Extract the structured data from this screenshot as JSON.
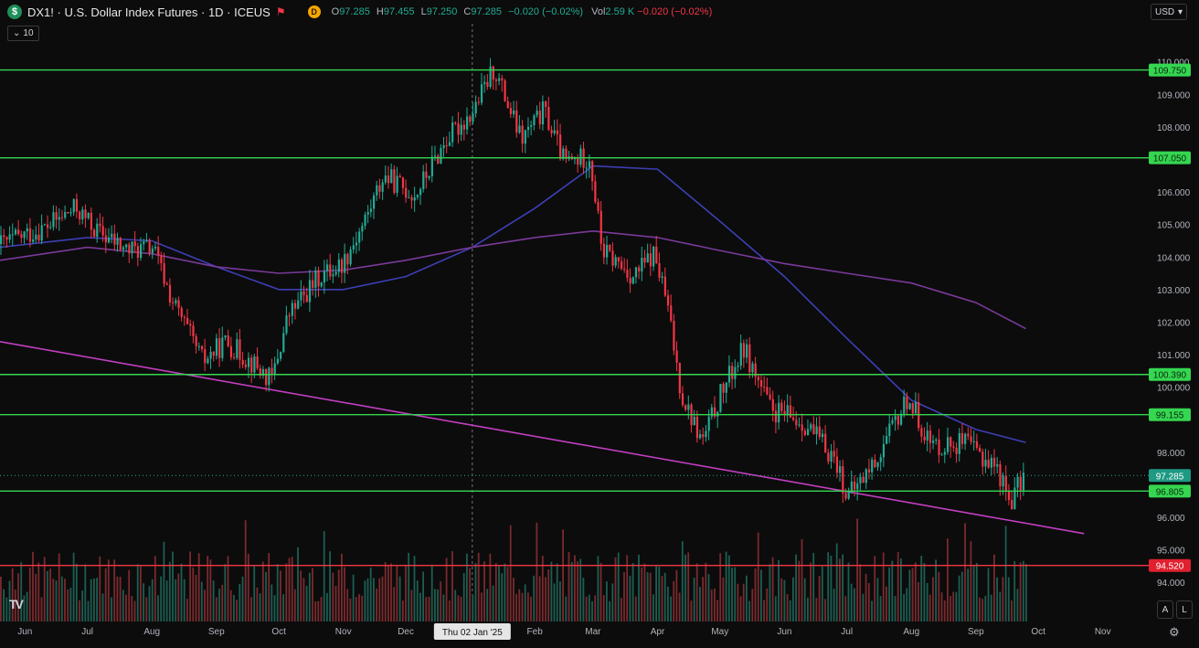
{
  "header": {
    "symbol_badge": "$",
    "title": "DX1! · U.S. Dollar Index Futures · 1D · ICEUS",
    "flag_icon": "flag-icon",
    "d_badge": "D",
    "ohlc": {
      "o_label": "O",
      "o": "97.285",
      "h_label": "H",
      "h": "97.455",
      "l_label": "L",
      "l": "97.250",
      "c_label": "C",
      "c": "97.285",
      "change": "−0.020 (−0.02%)",
      "vol_label": "Vol",
      "vol": "2.59 K",
      "vol_change": "−0.020 (−0.02%)"
    },
    "currency": "USD",
    "indicator_toggle_icon": "chevron-down-icon",
    "indicator_count": "10"
  },
  "axis": {
    "auto_button": "A",
    "log_button": "L",
    "settings_icon": "gear-icon",
    "logo": "TV"
  },
  "colors": {
    "up": "#22ab94",
    "down": "#f23645",
    "level_green": "#35d650",
    "level_red": "#f23645",
    "ma_fast": "#3d3fb5",
    "ma_slow": "#7a3a9a",
    "trendline": "#c23fc2"
  },
  "chart_data": {
    "type": "candlestick",
    "title": "DX1! · U.S. Dollar Index Futures · 1D · ICEUS",
    "price_range": [
      93.5,
      110.3
    ],
    "x_axis_labels": [
      {
        "date": "2024-06-01",
        "label": "Jun"
      },
      {
        "date": "2024-07-01",
        "label": "Jul"
      },
      {
        "date": "2024-08-01",
        "label": "Aug"
      },
      {
        "date": "2024-09-01",
        "label": "Sep"
      },
      {
        "date": "2024-10-01",
        "label": "Oct"
      },
      {
        "date": "2024-11-01",
        "label": "Nov"
      },
      {
        "date": "2024-12-01",
        "label": "Dec"
      },
      {
        "date": "2025-02-01",
        "label": "Feb"
      },
      {
        "date": "2025-03-01",
        "label": "Mar"
      },
      {
        "date": "2025-04-01",
        "label": "Apr"
      },
      {
        "date": "2025-05-01",
        "label": "May"
      },
      {
        "date": "2025-06-01",
        "label": "Jun"
      },
      {
        "date": "2025-07-01",
        "label": "Jul"
      },
      {
        "date": "2025-08-01",
        "label": "Aug"
      },
      {
        "date": "2025-09-01",
        "label": "Sep"
      },
      {
        "date": "2025-10-01",
        "label": "Oct"
      },
      {
        "date": "2025-11-01",
        "label": "Nov"
      }
    ],
    "crosshair": {
      "date": "2025-01-02",
      "label": "Thu 02 Jan '25"
    },
    "y_ticks": [
      "110.000",
      "109.000",
      "108.000",
      "106.000",
      "105.000",
      "104.000",
      "103.000",
      "102.000",
      "101.000",
      "100.000",
      "98.000",
      "96.000",
      "95.000",
      "94.000"
    ],
    "current_price": {
      "value": 97.285,
      "label": "97.285"
    },
    "horizontal_levels": [
      {
        "value": 109.75,
        "label": "109.750",
        "color": "green"
      },
      {
        "value": 107.05,
        "label": "107.050",
        "color": "green"
      },
      {
        "value": 100.39,
        "label": "100.390",
        "color": "green"
      },
      {
        "value": 99.155,
        "label": "99.155",
        "color": "green"
      },
      {
        "value": 96.805,
        "label": "96.805",
        "color": "green"
      },
      {
        "value": 94.52,
        "label": "94.520",
        "color": "red"
      }
    ],
    "trendline": {
      "points": [
        {
          "date": "2024-05-20",
          "price": 101.4
        },
        {
          "date": "2025-10-23",
          "price": 95.5
        }
      ]
    },
    "series": [
      {
        "id": "ma_fast",
        "color": "#3d3fb5",
        "points": [
          {
            "date": "2024-05-20",
            "price": 104.3
          },
          {
            "date": "2024-07-01",
            "price": 104.6
          },
          {
            "date": "2024-08-01",
            "price": 104.5
          },
          {
            "date": "2024-09-01",
            "price": 103.7
          },
          {
            "date": "2024-10-01",
            "price": 103.0
          },
          {
            "date": "2024-11-01",
            "price": 103.0
          },
          {
            "date": "2024-12-01",
            "price": 103.4
          },
          {
            "date": "2025-01-02",
            "price": 104.3
          },
          {
            "date": "2025-02-01",
            "price": 105.5
          },
          {
            "date": "2025-03-01",
            "price": 106.8
          },
          {
            "date": "2025-04-01",
            "price": 106.7
          },
          {
            "date": "2025-05-01",
            "price": 105.1
          },
          {
            "date": "2025-06-01",
            "price": 103.4
          },
          {
            "date": "2025-07-01",
            "price": 101.5
          },
          {
            "date": "2025-08-01",
            "price": 99.6
          },
          {
            "date": "2025-09-01",
            "price": 98.7
          },
          {
            "date": "2025-09-25",
            "price": 98.3
          }
        ]
      },
      {
        "id": "ma_slow",
        "color": "#7a3a9a",
        "points": [
          {
            "date": "2024-05-20",
            "price": 103.9
          },
          {
            "date": "2024-07-01",
            "price": 104.3
          },
          {
            "date": "2024-08-01",
            "price": 104.1
          },
          {
            "date": "2024-09-01",
            "price": 103.7
          },
          {
            "date": "2024-10-01",
            "price": 103.5
          },
          {
            "date": "2024-11-01",
            "price": 103.6
          },
          {
            "date": "2024-12-01",
            "price": 103.9
          },
          {
            "date": "2025-01-02",
            "price": 104.3
          },
          {
            "date": "2025-02-01",
            "price": 104.6
          },
          {
            "date": "2025-03-01",
            "price": 104.8
          },
          {
            "date": "2025-04-01",
            "price": 104.6
          },
          {
            "date": "2025-05-01",
            "price": 104.2
          },
          {
            "date": "2025-06-01",
            "price": 103.8
          },
          {
            "date": "2025-07-01",
            "price": 103.5
          },
          {
            "date": "2025-08-01",
            "price": 103.2
          },
          {
            "date": "2025-09-01",
            "price": 102.6
          },
          {
            "date": "2025-09-25",
            "price": 101.8
          }
        ]
      }
    ],
    "price_path": [
      {
        "date": "2024-05-20",
        "price": 104.4
      },
      {
        "date": "2024-06-10",
        "price": 104.9
      },
      {
        "date": "2024-06-25",
        "price": 105.5
      },
      {
        "date": "2024-07-05",
        "price": 104.8
      },
      {
        "date": "2024-07-20",
        "price": 104.2
      },
      {
        "date": "2024-08-01",
        "price": 104.3
      },
      {
        "date": "2024-08-10",
        "price": 102.7
      },
      {
        "date": "2024-08-25",
        "price": 100.8
      },
      {
        "date": "2024-09-05",
        "price": 101.4
      },
      {
        "date": "2024-09-15",
        "price": 100.9
      },
      {
        "date": "2024-09-27",
        "price": 100.2
      },
      {
        "date": "2024-10-05",
        "price": 102.2
      },
      {
        "date": "2024-10-20",
        "price": 103.4
      },
      {
        "date": "2024-10-31",
        "price": 103.8
      },
      {
        "date": "2024-11-10",
        "price": 105.0
      },
      {
        "date": "2024-11-20",
        "price": 106.5
      },
      {
        "date": "2024-12-05",
        "price": 105.9
      },
      {
        "date": "2024-12-20",
        "price": 107.6
      },
      {
        "date": "2025-01-02",
        "price": 108.5
      },
      {
        "date": "2025-01-12",
        "price": 109.8
      },
      {
        "date": "2025-01-25",
        "price": 107.6
      },
      {
        "date": "2025-02-05",
        "price": 108.5
      },
      {
        "date": "2025-02-15",
        "price": 106.9
      },
      {
        "date": "2025-02-27",
        "price": 107.1
      },
      {
        "date": "2025-03-05",
        "price": 104.2
      },
      {
        "date": "2025-03-20",
        "price": 103.4
      },
      {
        "date": "2025-03-30",
        "price": 104.1
      },
      {
        "date": "2025-04-05",
        "price": 102.6
      },
      {
        "date": "2025-04-12",
        "price": 99.8
      },
      {
        "date": "2025-04-22",
        "price": 98.3
      },
      {
        "date": "2025-05-01",
        "price": 99.8
      },
      {
        "date": "2025-05-12",
        "price": 101.2
      },
      {
        "date": "2025-05-25",
        "price": 99.3
      },
      {
        "date": "2025-06-10",
        "price": 98.9
      },
      {
        "date": "2025-06-25",
        "price": 97.8
      },
      {
        "date": "2025-07-01",
        "price": 96.6
      },
      {
        "date": "2025-07-15",
        "price": 97.8
      },
      {
        "date": "2025-07-30",
        "price": 99.7
      },
      {
        "date": "2025-08-10",
        "price": 98.2
      },
      {
        "date": "2025-08-25",
        "price": 98.3
      },
      {
        "date": "2025-09-10",
        "price": 97.6
      },
      {
        "date": "2025-09-17",
        "price": 96.5
      },
      {
        "date": "2025-09-24",
        "price": 97.285
      }
    ]
  }
}
